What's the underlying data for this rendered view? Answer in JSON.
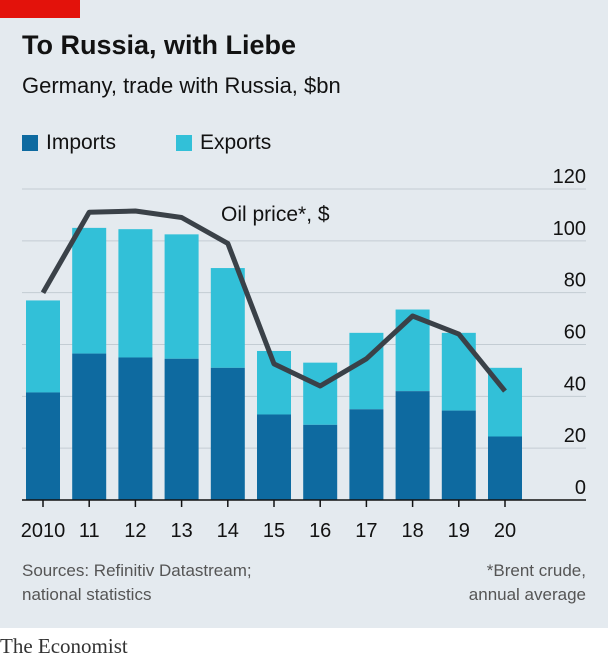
{
  "header": {
    "title": "To Russia, with Liebe",
    "subtitle": "Germany, trade with Russia, $bn"
  },
  "legend": {
    "imports": "Imports",
    "exports": "Exports"
  },
  "colors": {
    "imports": "#0e6aa0",
    "exports": "#32c0d8",
    "oil_line": "#3a4148",
    "background": "#e4eaef",
    "brand_red": "#e3120b"
  },
  "chart_data": {
    "type": "bar",
    "stacked": true,
    "categories": [
      "2010",
      "11",
      "12",
      "13",
      "14",
      "15",
      "16",
      "17",
      "18",
      "19",
      "20"
    ],
    "series": [
      {
        "name": "Imports",
        "values": [
          41.5,
          56.5,
          55,
          54.5,
          51,
          33,
          29,
          35,
          42,
          34.5,
          24.5
        ]
      },
      {
        "name": "Exports",
        "values": [
          35.5,
          48.5,
          49.5,
          48,
          38.5,
          24.5,
          24,
          29.5,
          31.5,
          30,
          26.5
        ]
      }
    ],
    "line": {
      "name": "Oil price*, $",
      "values": [
        80,
        111,
        111.5,
        109,
        99,
        52.5,
        44,
        54.5,
        71,
        64,
        42
      ]
    },
    "ylim": [
      0,
      120
    ],
    "yticks": [
      0,
      20,
      40,
      60,
      80,
      100,
      120
    ],
    "y_axis_position": "right",
    "grid": true,
    "legend_position": "top-left"
  },
  "footer": {
    "sources_line1": "Sources: Refinitiv Datastream;",
    "sources_line2": "national statistics",
    "note_line1": "*Brent crude,",
    "note_line2": "annual average",
    "brand": "The Economist"
  }
}
